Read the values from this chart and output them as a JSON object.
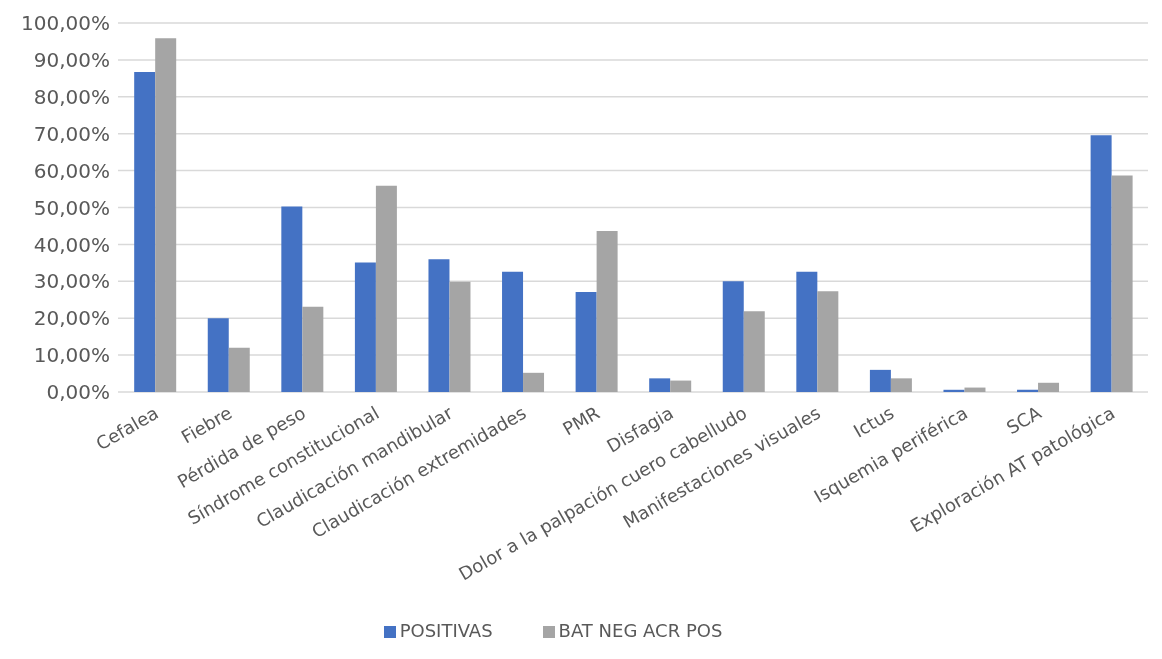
{
  "chart_data": {
    "type": "bar",
    "categories": [
      "Cefalea",
      "Fiebre",
      "Pérdida de peso",
      "Síndrome constitucional",
      "Claudicación mandibular",
      "Claudicación extremidades",
      "PMR",
      "Disfagia",
      "Dolor a la palpación cuero cabelludo",
      "Manifestaciones visuales",
      "Ictus",
      "Isquemia periférica",
      "SCA",
      "Exploración AT patológica"
    ],
    "series": [
      {
        "name": "POSITIVAS",
        "color": "#4472c4",
        "values": [
          86.7,
          20.0,
          50.3,
          35.1,
          36.0,
          32.6,
          27.1,
          3.7,
          30.0,
          32.6,
          6.0,
          0.6,
          0.6,
          69.6
        ]
      },
      {
        "name": "BAT NEG ACR POS",
        "color": "#a5a5a5",
        "values": [
          95.9,
          12.0,
          23.1,
          55.9,
          29.9,
          5.2,
          43.6,
          3.1,
          21.9,
          27.3,
          3.7,
          1.2,
          2.5,
          58.7
        ]
      }
    ],
    "ylim": [
      0,
      100
    ],
    "yticks": [
      {
        "value": 0,
        "label": "0,00%"
      },
      {
        "value": 10,
        "label": "10,00%"
      },
      {
        "value": 20,
        "label": "20,00%"
      },
      {
        "value": 30,
        "label": "30,00%"
      },
      {
        "value": 40,
        "label": "40,00%"
      },
      {
        "value": 50,
        "label": "50,00%"
      },
      {
        "value": 60,
        "label": "60,00%"
      },
      {
        "value": 70,
        "label": "70,00%"
      },
      {
        "value": 80,
        "label": "80,00%"
      },
      {
        "value": 90,
        "label": "90,00%"
      },
      {
        "value": 100,
        "label": "100,00%"
      }
    ],
    "grid": "y",
    "legend": "bottom"
  }
}
